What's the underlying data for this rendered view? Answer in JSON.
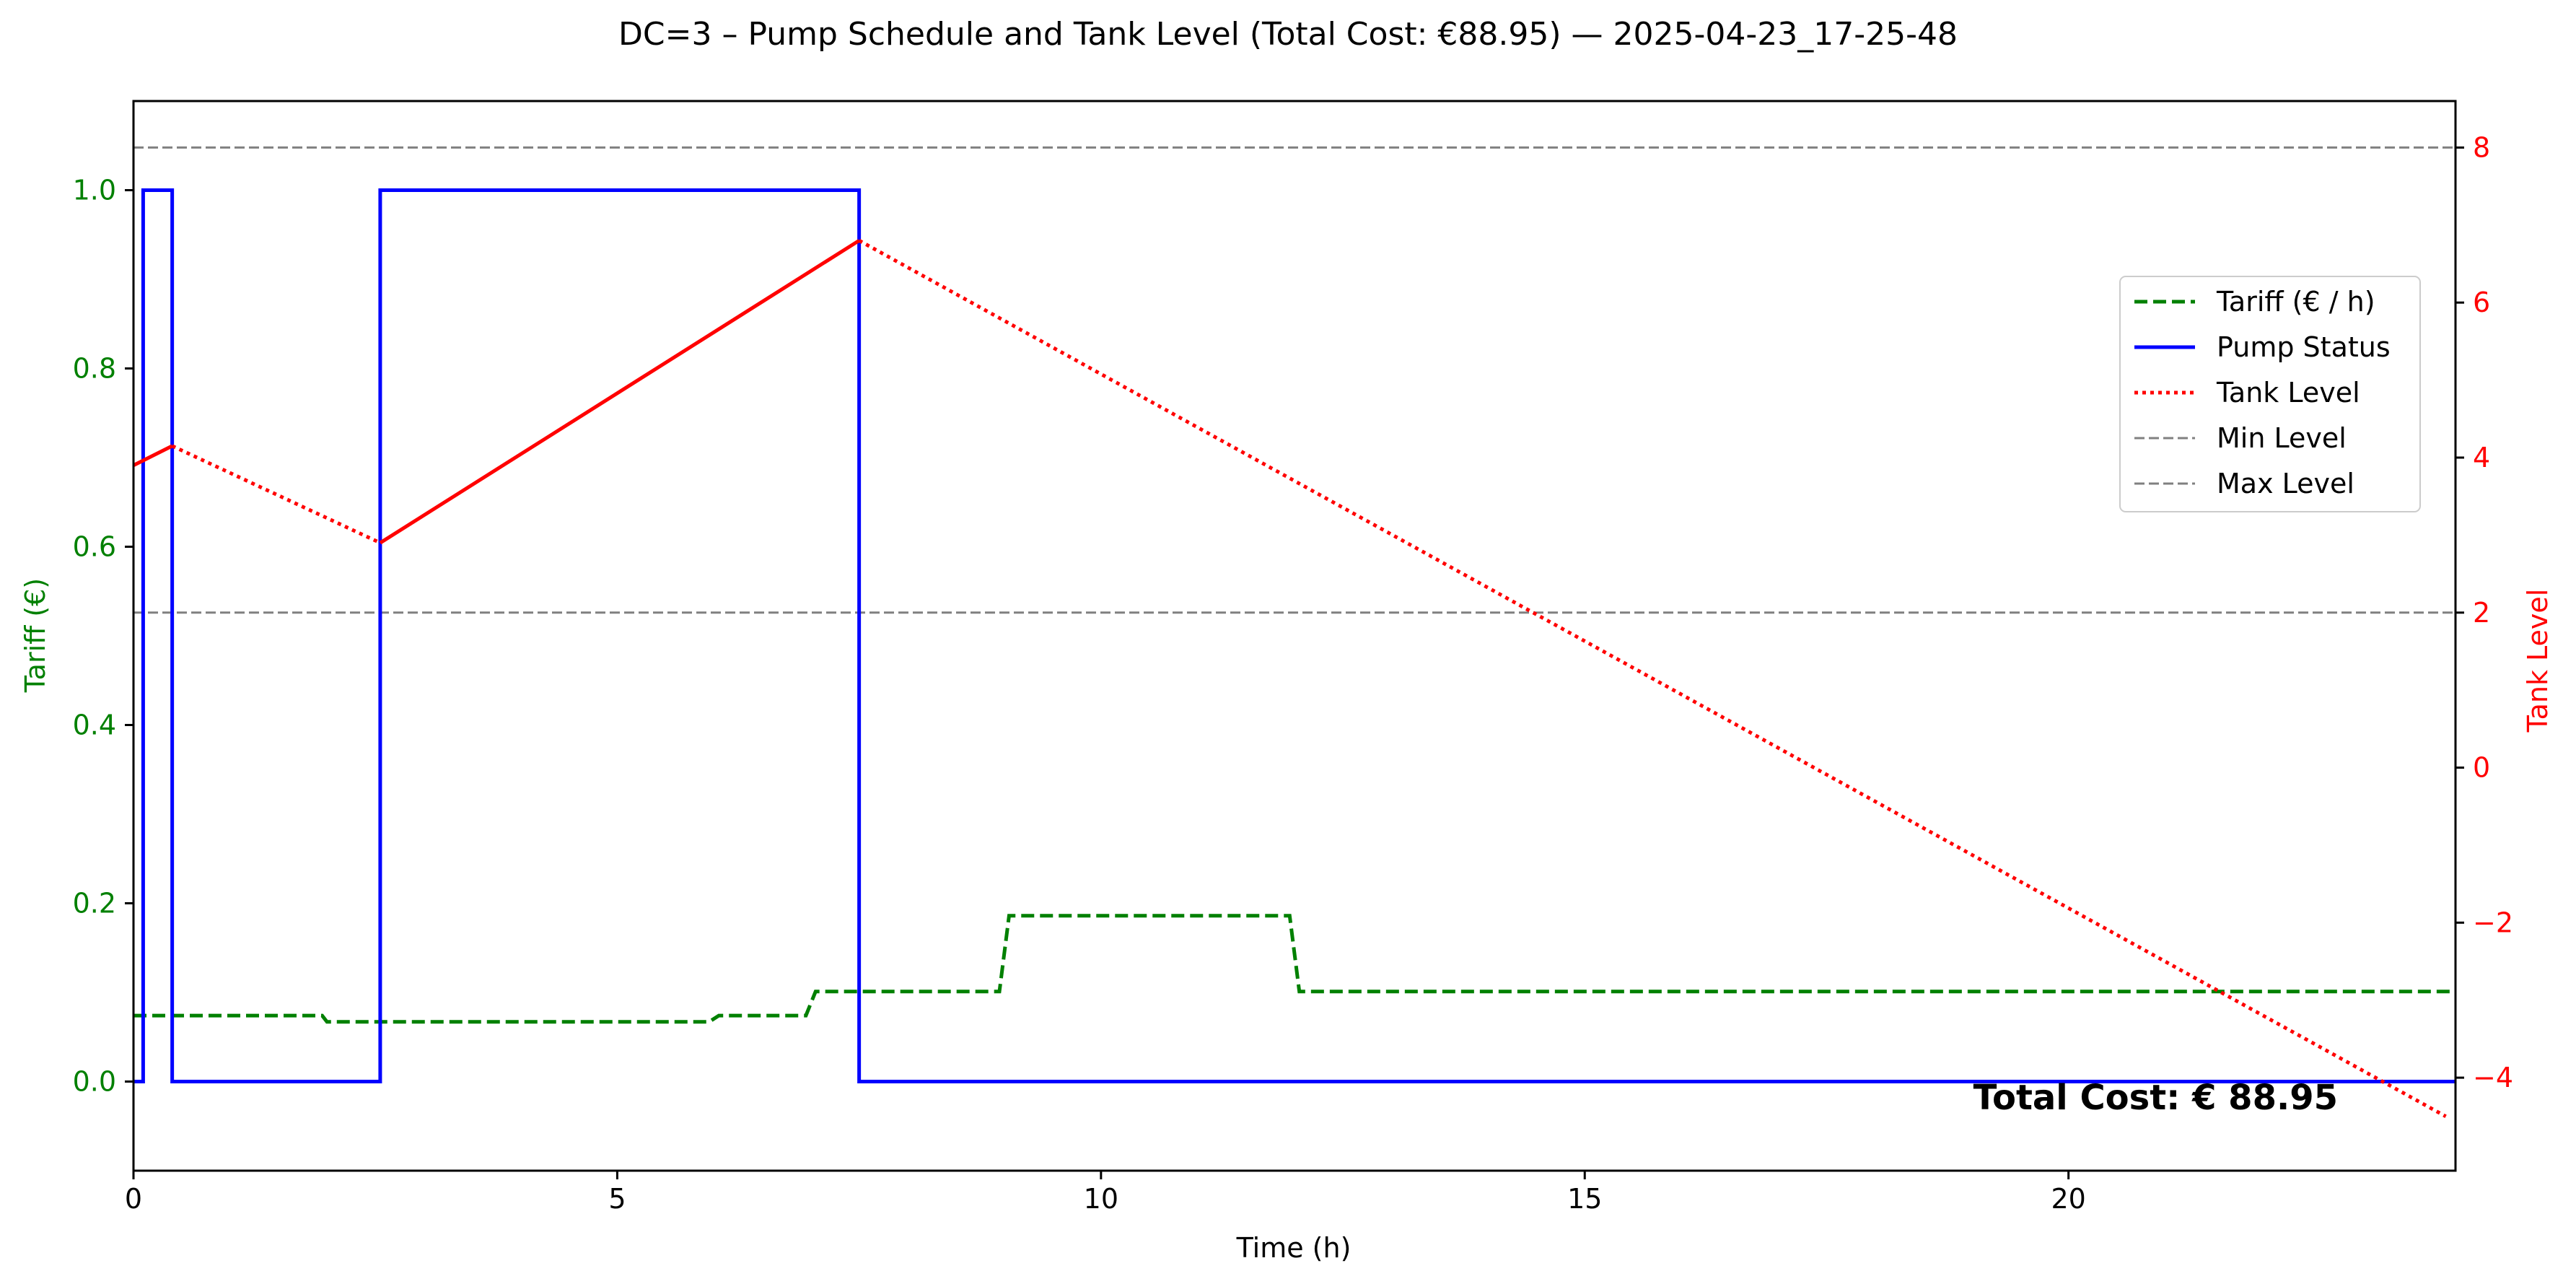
{
  "chart_data": {
    "type": "line",
    "title": "DC=3 – Pump Schedule and Tank Level (Total Cost: €88.95) — 2025-04-23_17-25-48",
    "xlabel": "Time (h)",
    "ylabel_left": "Tariff (€)",
    "ylabel_right": "Tank Level",
    "xlim": [
      0,
      24
    ],
    "ylim_left": [
      -0.1,
      1.1
    ],
    "ylim_right": [
      -5.2,
      8.6
    ],
    "x_ticks": [
      0,
      5,
      10,
      15,
      20
    ],
    "y_left_ticks": [
      "0.0",
      "0.2",
      "0.4",
      "0.6",
      "0.8",
      "1.0"
    ],
    "y_right_ticks": [
      "−4",
      "−2",
      "0",
      "2",
      "4",
      "6",
      "8"
    ],
    "grid": false,
    "legend_position": "upper-right",
    "annotation": "Total Cost: € 88.95",
    "colors": {
      "tariff": "#008000",
      "pump": "#0000ff",
      "tank": "#ff0000",
      "limits": "#808080",
      "left_axis": "#008000",
      "right_axis": "#ff0000"
    },
    "series": [
      {
        "name": "Tariff (€ / h)",
        "axis": "left",
        "style": "dashed",
        "x": [
          0,
          1.95,
          2.0,
          5.95,
          6.05,
          6.95,
          7.05,
          8.95,
          9.05,
          11.95,
          12.05,
          24
        ],
        "y": [
          0.074,
          0.074,
          0.067,
          0.067,
          0.074,
          0.074,
          0.101,
          0.101,
          0.186,
          0.186,
          0.101,
          0.101
        ]
      },
      {
        "name": "Pump Status",
        "axis": "left",
        "style": "solid-step",
        "x": [
          0,
          0.1,
          0.1,
          0.4,
          0.4,
          2.55,
          2.55,
          7.5,
          7.5,
          24
        ],
        "y": [
          0,
          0,
          1,
          1,
          0,
          0,
          1,
          1,
          0,
          0
        ]
      },
      {
        "name": "Tank Level",
        "axis": "right",
        "segments": [
          {
            "style": "solid",
            "x": [
              0,
              0.4
            ],
            "y": [
              3.9,
              4.15
            ]
          },
          {
            "style": "dotted",
            "x": [
              0.4,
              2.55
            ],
            "y": [
              4.15,
              2.9
            ]
          },
          {
            "style": "solid",
            "x": [
              2.55,
              7.5
            ],
            "y": [
              2.9,
              6.8
            ]
          },
          {
            "style": "dotted",
            "x": [
              7.5,
              23.9
            ],
            "y": [
              6.8,
              -4.5
            ]
          }
        ]
      },
      {
        "name": "Min Level",
        "axis": "right",
        "style": "dashed",
        "y_const": 2
      },
      {
        "name": "Max Level",
        "axis": "right",
        "style": "dashed",
        "y_const": 8
      }
    ]
  }
}
